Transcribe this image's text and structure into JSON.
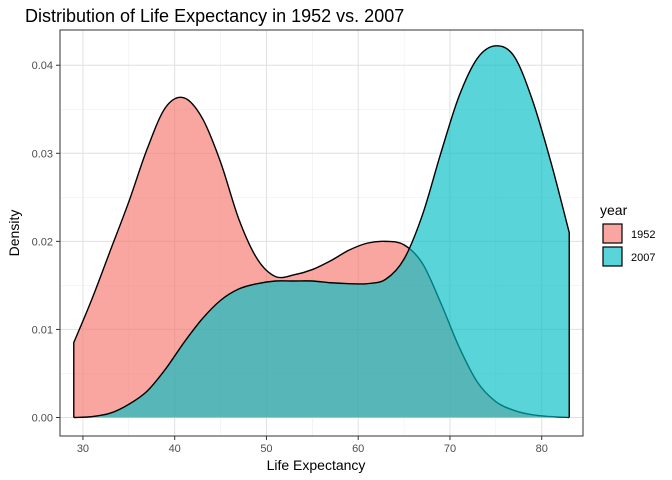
{
  "chart_data": {
    "type": "area",
    "title": "Distribution of Life Expectancy in 1952 vs. 2007",
    "xlabel": "Life Expectancy",
    "ylabel": "Density",
    "xlim": [
      27.5,
      84.5
    ],
    "ylim": [
      -0.0021,
      0.044
    ],
    "x_ticks": [
      30,
      40,
      50,
      60,
      70,
      80
    ],
    "y_ticks": [
      0.0,
      0.01,
      0.02,
      0.03,
      0.04
    ],
    "y_tick_labels": [
      "0.00",
      "0.01",
      "0.02",
      "0.03",
      "0.04"
    ],
    "grid": true,
    "legend": {
      "title": "year",
      "position": "right"
    },
    "series": [
      {
        "name": "1952",
        "color": "#F8766D",
        "x": [
          29,
          31,
          33,
          35,
          37,
          39,
          41,
          43,
          45,
          47,
          49,
          51,
          53,
          55,
          57,
          59,
          61,
          63,
          65,
          67,
          69,
          71,
          73,
          75,
          77,
          79,
          81,
          83
        ],
        "values": [
          0.0085,
          0.0135,
          0.019,
          0.0245,
          0.0305,
          0.0352,
          0.0363,
          0.034,
          0.029,
          0.0225,
          0.018,
          0.016,
          0.0162,
          0.0168,
          0.0178,
          0.019,
          0.0198,
          0.02,
          0.0196,
          0.0175,
          0.013,
          0.008,
          0.004,
          0.0018,
          0.0008,
          0.0003,
          0.0001,
          0.0
        ]
      },
      {
        "name": "2007",
        "color": "#00BFC4",
        "x": [
          29,
          31,
          33,
          35,
          37,
          39,
          41,
          43,
          45,
          47,
          49,
          51,
          53,
          55,
          57,
          59,
          61,
          63,
          65,
          67,
          69,
          71,
          73,
          75,
          77,
          79,
          81,
          83
        ],
        "values": [
          0.0,
          0.0001,
          0.0005,
          0.0015,
          0.003,
          0.0055,
          0.0085,
          0.0112,
          0.0133,
          0.0146,
          0.0152,
          0.0155,
          0.0155,
          0.0155,
          0.0153,
          0.0152,
          0.0152,
          0.0157,
          0.018,
          0.023,
          0.03,
          0.0365,
          0.0408,
          0.0422,
          0.041,
          0.036,
          0.029,
          0.021
        ]
      }
    ]
  }
}
